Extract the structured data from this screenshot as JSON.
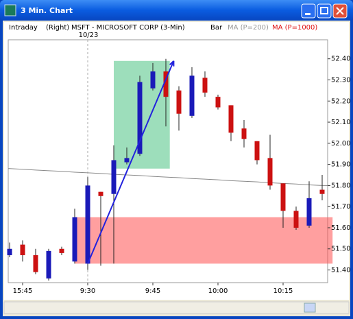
{
  "window": {
    "title": "3 Min. Chart"
  },
  "chart_data": {
    "type": "candlestick",
    "header": [
      "Intraday",
      "(Right)",
      "MSFT - MICROSOFT CORP (3-Min)",
      "Bar"
    ],
    "day_label": "10/23",
    "categories": [
      null,
      "15:45",
      null,
      null,
      null,
      null,
      "9:30",
      null,
      null,
      null,
      null,
      "9:45",
      null,
      null,
      null,
      null,
      "10:00",
      null,
      null,
      null,
      null,
      "10:15",
      null,
      null,
      null
    ],
    "open": [
      51.47,
      51.52,
      51.47,
      51.36,
      51.5,
      51.44,
      51.43,
      51.77,
      51.76,
      51.91,
      51.95,
      52.26,
      52.34,
      52.25,
      52.13,
      52.31,
      52.22,
      52.18,
      52.07,
      52.01,
      51.93,
      51.81,
      51.68,
      51.61,
      51.78
    ],
    "high": [
      51.53,
      51.54,
      51.5,
      51.5,
      51.51,
      51.69,
      51.84,
      51.77,
      51.99,
      51.98,
      52.32,
      52.38,
      52.4,
      52.27,
      52.36,
      52.34,
      52.23,
      52.18,
      52.11,
      52.01,
      52.04,
      51.81,
      51.7,
      51.82,
      51.85
    ],
    "low": [
      51.46,
      51.44,
      51.38,
      51.35,
      51.47,
      51.43,
      51.4,
      51.42,
      51.43,
      51.9,
      51.94,
      52.25,
      52.08,
      52.06,
      52.12,
      52.22,
      52.16,
      52.01,
      51.98,
      51.9,
      51.78,
      51.6,
      51.59,
      51.6,
      51.73
    ],
    "close": [
      51.5,
      51.47,
      51.39,
      51.49,
      51.48,
      51.65,
      51.8,
      51.75,
      51.92,
      51.93,
      52.29,
      52.34,
      52.22,
      52.14,
      52.32,
      52.24,
      52.17,
      52.05,
      52.02,
      51.92,
      51.8,
      51.68,
      51.6,
      51.74,
      51.76
    ],
    "up_color": "#1a1ab8",
    "down_color": "#cc1111",
    "series": [
      {
        "name": "MA (P=200)",
        "color": "#888888",
        "values": [
          51.88,
          51.877,
          51.873,
          51.87,
          51.867,
          51.863,
          51.86,
          51.857,
          51.853,
          51.85,
          51.847,
          51.843,
          51.84,
          51.837,
          51.833,
          51.83,
          51.827,
          51.823,
          51.82,
          51.817,
          51.813,
          51.81,
          51.807,
          51.803,
          51.8
        ]
      },
      {
        "name": "MA (P=1000)",
        "color": "#e01010",
        "values": [
          null,
          null,
          null,
          null,
          null,
          null,
          null,
          null,
          null,
          null,
          null,
          null,
          null,
          null,
          null,
          null,
          null,
          null,
          null,
          null,
          null,
          null,
          null,
          null,
          null
        ]
      }
    ],
    "zones": [
      {
        "x": [
          8,
          12.3
        ],
        "y": [
          51.88,
          52.39
        ],
        "color": "rgba(60,190,120,0.5)"
      },
      {
        "x": [
          5,
          24.8
        ],
        "y": [
          51.43,
          51.65
        ],
        "color": "rgba(255,80,80,0.55)"
      }
    ],
    "trendline": {
      "x": [
        6,
        12.6
      ],
      "y": [
        51.43,
        52.39
      ],
      "color": "#2222dd"
    },
    "ylim": [
      51.34,
      52.49
    ],
    "yticks": [
      {
        "value": 51.4,
        "label": "51.40"
      },
      {
        "value": 51.5,
        "label": "51.50"
      },
      {
        "value": 51.6,
        "label": "51.60"
      },
      {
        "value": 51.7,
        "label": "51.70"
      },
      {
        "value": 51.8,
        "label": "51.80"
      },
      {
        "value": 51.9,
        "label": "51.90"
      },
      {
        "value": 52.0,
        "label": "52.00"
      },
      {
        "value": 52.1,
        "label": "52.10"
      },
      {
        "value": 52.2,
        "label": "52.20"
      },
      {
        "value": 52.3,
        "label": "52.30"
      },
      {
        "value": 52.4,
        "label": "52.40"
      }
    ]
  }
}
